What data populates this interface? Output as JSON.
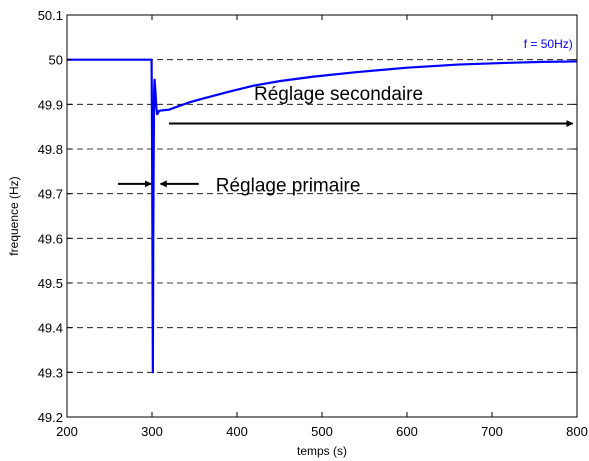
{
  "chart_data": {
    "type": "line",
    "title": "",
    "xlabel": "temps (s)",
    "ylabel": "frequence (Hz)",
    "xlim": [
      200,
      800
    ],
    "ylim": [
      49.2,
      50.1
    ],
    "xticks": [
      200,
      300,
      400,
      500,
      600,
      700,
      800
    ],
    "yticks": [
      49.2,
      49.3,
      49.4,
      49.5,
      49.6,
      49.7,
      49.8,
      49.9,
      50,
      50.1
    ],
    "xtick_labels": [
      "200",
      "300",
      "400",
      "500",
      "600",
      "700",
      "800"
    ],
    "ytick_labels": [
      "49.2",
      "49.3",
      "49.4",
      "49.5",
      "49.6",
      "49.7",
      "49.8",
      "49.9",
      "50",
      "50.1"
    ],
    "grid": "horizontal dashed",
    "series": [
      {
        "color": "#0000ff",
        "x": [
          200,
          299.5,
          300,
          300.5,
          301,
          301.5,
          302,
          302.5,
          303,
          304,
          305,
          306,
          307,
          308,
          310,
          315,
          320,
          330,
          345,
          360,
          390,
          420,
          450,
          490,
          540,
          600,
          660,
          720,
          760,
          800
        ],
        "y": [
          50.0,
          50.0,
          49.85,
          49.6,
          49.3,
          49.6,
          49.8,
          49.93,
          49.955,
          49.93,
          49.895,
          49.878,
          49.88,
          49.885,
          49.886,
          49.887,
          49.888,
          49.895,
          49.905,
          49.913,
          49.928,
          49.942,
          49.952,
          49.962,
          49.972,
          49.982,
          49.989,
          49.993,
          49.995,
          49.996
        ]
      }
    ],
    "annotations": [
      {
        "text": "f = 50Hz)",
        "x": 795,
        "y": 50.035,
        "color": "#0000ff"
      },
      {
        "text": "Réglage secondaire",
        "x": 420,
        "y": 49.925,
        "arrow": {
          "from": [
            320,
            49.857
          ],
          "to": [
            795,
            49.857
          ]
        }
      },
      {
        "text": "Réglage primaire",
        "x": 375,
        "y": 49.72,
        "arrows": [
          {
            "from": [
              260,
              49.722
            ],
            "to": [
              299,
              49.722
            ]
          },
          {
            "from": [
              355,
              49.722
            ],
            "to": [
              310,
              49.722
            ]
          }
        ]
      }
    ]
  }
}
